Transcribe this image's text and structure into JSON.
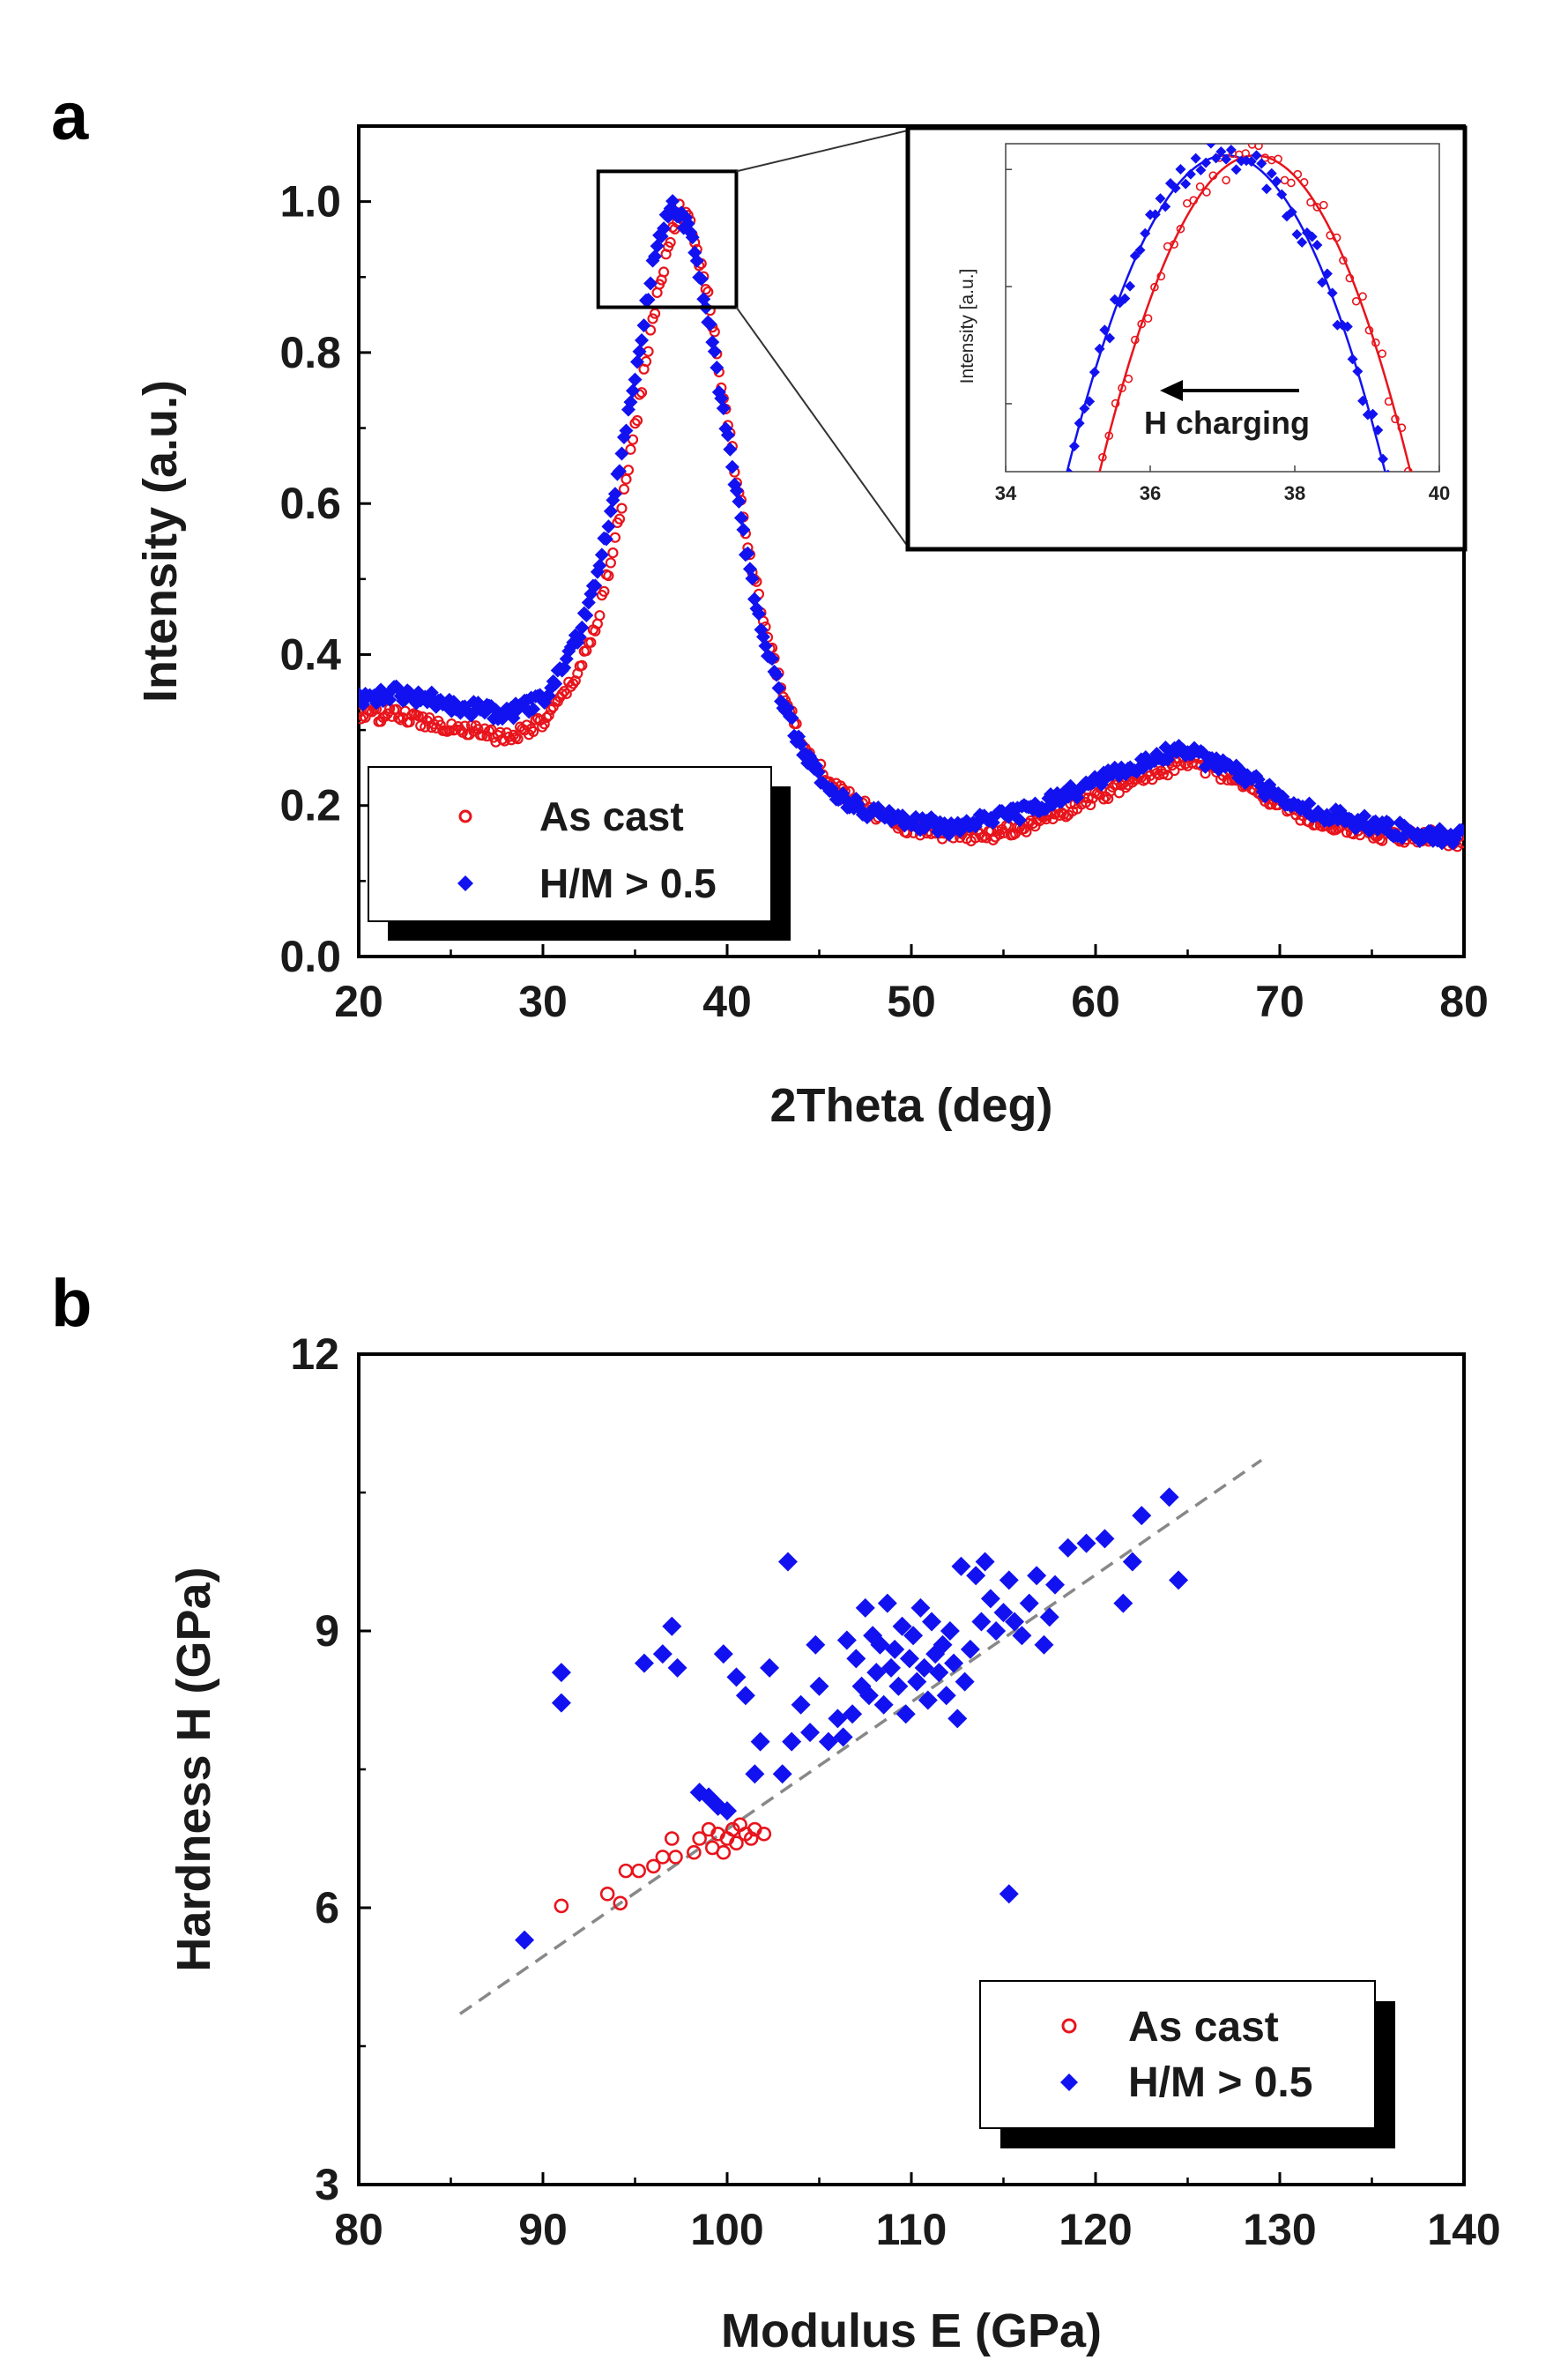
{
  "chart_data": [
    {
      "panel": "a",
      "type": "scatter",
      "xlabel": "2Theta (deg)",
      "ylabel": "Intensity (a.u.)",
      "xlim": [
        20,
        80
      ],
      "ylim": [
        0.0,
        1.1
      ],
      "xticks": [
        "20",
        "30",
        "40",
        "50",
        "60",
        "70",
        "80"
      ],
      "yticks": [
        "0.0",
        "0.2",
        "0.4",
        "0.6",
        "0.8",
        "1.0"
      ],
      "legend": {
        "placement": "bottom-left",
        "entries": [
          "As cast",
          "H/M > 0.5"
        ]
      },
      "series": [
        {
          "name": "As cast",
          "marker": "open-circle",
          "color": "#e8141c",
          "peak_center": 37.4,
          "peak_height": 0.99,
          "baseline_low_angle": 0.31,
          "broad_peak_center": 65.0,
          "broad_peak_height": 0.26,
          "end_value": 0.15,
          "x": [
            20,
            22,
            24,
            26,
            28,
            30,
            31,
            32,
            33,
            34,
            35,
            36,
            37,
            37.4,
            38,
            39,
            40,
            41,
            42,
            43,
            44,
            45,
            46,
            48,
            50,
            52,
            54,
            56,
            58,
            60,
            62,
            64,
            65,
            66,
            68,
            70,
            72,
            74,
            76,
            78,
            80
          ],
          "y": [
            0.32,
            0.32,
            0.31,
            0.3,
            0.29,
            0.31,
            0.34,
            0.38,
            0.45,
            0.56,
            0.7,
            0.85,
            0.96,
            0.99,
            0.97,
            0.87,
            0.71,
            0.56,
            0.44,
            0.35,
            0.29,
            0.25,
            0.22,
            0.19,
            0.17,
            0.16,
            0.16,
            0.17,
            0.19,
            0.21,
            0.23,
            0.25,
            0.26,
            0.25,
            0.23,
            0.2,
            0.18,
            0.17,
            0.16,
            0.16,
            0.15
          ]
        },
        {
          "name": "H/M > 0.5",
          "marker": "filled-diamond",
          "color": "#1212f0",
          "peak_center": 37.0,
          "peak_height": 1.0,
          "baseline_low_angle": 0.34,
          "broad_peak_center": 64.0,
          "broad_peak_height": 0.27,
          "end_value": 0.16,
          "x": [
            20,
            22,
            24,
            26,
            28,
            30,
            31,
            32,
            33,
            34,
            35,
            36,
            37,
            38,
            39,
            40,
            41,
            42,
            43,
            44,
            45,
            46,
            48,
            50,
            52,
            54,
            56,
            58,
            60,
            62,
            64,
            65,
            66,
            68,
            70,
            72,
            74,
            76,
            78,
            80
          ],
          "y": [
            0.34,
            0.35,
            0.34,
            0.33,
            0.32,
            0.34,
            0.38,
            0.43,
            0.51,
            0.63,
            0.77,
            0.92,
            1.0,
            0.96,
            0.84,
            0.69,
            0.54,
            0.42,
            0.34,
            0.28,
            0.24,
            0.21,
            0.19,
            0.18,
            0.17,
            0.18,
            0.19,
            0.21,
            0.23,
            0.25,
            0.27,
            0.27,
            0.26,
            0.24,
            0.21,
            0.19,
            0.18,
            0.17,
            0.16,
            0.16
          ]
        }
      ],
      "inset": {
        "xlim": [
          34,
          40
        ],
        "xticks": [
          "34",
          "36",
          "38",
          "40"
        ],
        "ylabel": "Intensity [a.u.]",
        "annotation": "H charging",
        "zoom_box_x": [
          33.0,
          40.5
        ],
        "zoom_box_y": [
          0.86,
          1.04
        ]
      }
    },
    {
      "panel": "b",
      "type": "scatter",
      "xlabel": "Modulus E (GPa)",
      "ylabel": "Hardness H (GPa)",
      "xlim": [
        80,
        140
      ],
      "ylim": [
        3,
        12
      ],
      "xticks": [
        "80",
        "90",
        "100",
        "110",
        "120",
        "130",
        "140"
      ],
      "yticks": [
        "3",
        "6",
        "9",
        "12"
      ],
      "legend": {
        "placement": "bottom-right",
        "entries": [
          "As cast",
          "H/M > 0.5"
        ]
      },
      "trendline": {
        "style": "dashed",
        "color": "#888888",
        "x": [
          85.5,
          129
        ],
        "y": [
          4.85,
          10.85
        ]
      },
      "series": [
        {
          "name": "As cast",
          "marker": "open-circle",
          "color": "#e8141c",
          "points": [
            [
              91,
              6.02
            ],
            [
              93.5,
              6.15
            ],
            [
              94.2,
              6.05
            ],
            [
              94.5,
              6.4
            ],
            [
              95.2,
              6.4
            ],
            [
              96,
              6.45
            ],
            [
              96.5,
              6.55
            ],
            [
              97,
              6.75
            ],
            [
              97.2,
              6.55
            ],
            [
              98.2,
              6.6
            ],
            [
              98.5,
              6.75
            ],
            [
              99,
              6.85
            ],
            [
              99.2,
              6.65
            ],
            [
              99.5,
              6.8
            ],
            [
              99.8,
              6.6
            ],
            [
              100,
              6.75
            ],
            [
              100.3,
              6.85
            ],
            [
              100.5,
              6.7
            ],
            [
              100.7,
              6.9
            ],
            [
              101,
              6.8
            ],
            [
              101.3,
              6.75
            ],
            [
              101.5,
              6.85
            ],
            [
              102,
              6.8
            ]
          ]
        },
        {
          "name": "H/M > 0.5",
          "marker": "filled-diamond",
          "color": "#1212f0",
          "points": [
            [
              89,
              5.65
            ],
            [
              91,
              8.55
            ],
            [
              91,
              8.22
            ],
            [
              95.5,
              8.65
            ],
            [
              96.5,
              8.75
            ],
            [
              97,
              9.05
            ],
            [
              97.3,
              8.6
            ],
            [
              98.5,
              7.25
            ],
            [
              99,
              7.2
            ],
            [
              99.5,
              7.1
            ],
            [
              100,
              7.05
            ],
            [
              99.8,
              8.75
            ],
            [
              100.5,
              8.5
            ],
            [
              101,
              8.3
            ],
            [
              101.5,
              7.45
            ],
            [
              101.8,
              7.8
            ],
            [
              102.3,
              8.6
            ],
            [
              103,
              7.45
            ],
            [
              103.3,
              9.75
            ],
            [
              103.5,
              7.8
            ],
            [
              104,
              8.2
            ],
            [
              104.5,
              7.9
            ],
            [
              104.8,
              8.85
            ],
            [
              105,
              8.4
            ],
            [
              105.5,
              7.8
            ],
            [
              106,
              8.05
            ],
            [
              106.3,
              7.85
            ],
            [
              106.5,
              8.9
            ],
            [
              106.8,
              8.1
            ],
            [
              107,
              8.7
            ],
            [
              107.3,
              8.4
            ],
            [
              107.5,
              9.25
            ],
            [
              107.7,
              8.3
            ],
            [
              107.9,
              8.95
            ],
            [
              108.1,
              8.55
            ],
            [
              108.3,
              8.85
            ],
            [
              108.5,
              8.2
            ],
            [
              108.7,
              9.3
            ],
            [
              108.9,
              8.6
            ],
            [
              109.1,
              8.8
            ],
            [
              109.3,
              8.4
            ],
            [
              109.5,
              9.05
            ],
            [
              109.7,
              8.1
            ],
            [
              109.9,
              8.7
            ],
            [
              110.1,
              8.95
            ],
            [
              110.3,
              8.45
            ],
            [
              110.5,
              9.25
            ],
            [
              110.7,
              8.6
            ],
            [
              110.9,
              8.25
            ],
            [
              111.1,
              9.1
            ],
            [
              111.3,
              8.75
            ],
            [
              111.5,
              8.55
            ],
            [
              111.7,
              8.85
            ],
            [
              111.9,
              8.3
            ],
            [
              112.1,
              9.0
            ],
            [
              112.3,
              8.65
            ],
            [
              112.5,
              8.05
            ],
            [
              112.7,
              9.7
            ],
            [
              112.9,
              8.45
            ],
            [
              113.2,
              8.8
            ],
            [
              113.5,
              9.6
            ],
            [
              113.8,
              9.1
            ],
            [
              114,
              9.75
            ],
            [
              114.3,
              9.35
            ],
            [
              114.6,
              9.0
            ],
            [
              115,
              9.2
            ],
            [
              115.3,
              9.55
            ],
            [
              115.6,
              9.1
            ],
            [
              116,
              8.95
            ],
            [
              116.4,
              9.3
            ],
            [
              116.8,
              9.6
            ],
            [
              117.2,
              8.85
            ],
            [
              117.5,
              9.15
            ],
            [
              117.8,
              9.5
            ],
            [
              118.5,
              9.9
            ],
            [
              119.5,
              9.95
            ],
            [
              120.5,
              10.0
            ],
            [
              121.5,
              9.3
            ],
            [
              122,
              9.75
            ],
            [
              122.5,
              10.25
            ],
            [
              124,
              10.45
            ],
            [
              124.5,
              9.55
            ],
            [
              115.3,
              6.15
            ]
          ]
        }
      ]
    }
  ]
}
